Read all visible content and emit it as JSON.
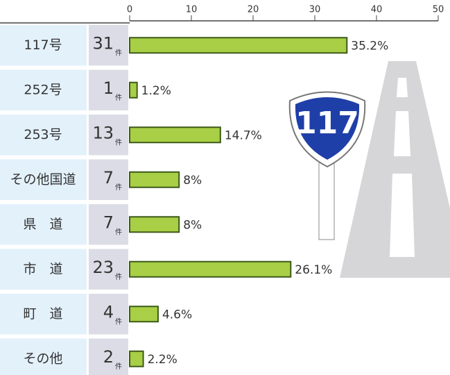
{
  "chart_data": {
    "type": "bar",
    "categories": [
      "117号",
      "252号",
      "253号",
      "その他国道",
      "県　道",
      "市　道",
      "町　道",
      "その他"
    ],
    "values": [
      35.2,
      1.2,
      14.7,
      8,
      8,
      26.1,
      4.6,
      2.2
    ],
    "value_labels": [
      "35.2%",
      "1.2%",
      "14.7%",
      "8%",
      "8%",
      "26.1%",
      "4.6%",
      "2.2%"
    ],
    "counts": [
      31,
      1,
      13,
      7,
      7,
      23,
      4,
      2
    ],
    "count_unit": "件",
    "color": "#a8cf45",
    "xlim": [
      0,
      50
    ],
    "xticks": [
      0,
      10,
      20,
      30,
      40,
      50
    ],
    "grid": false
  },
  "sign": {
    "label": "117"
  }
}
